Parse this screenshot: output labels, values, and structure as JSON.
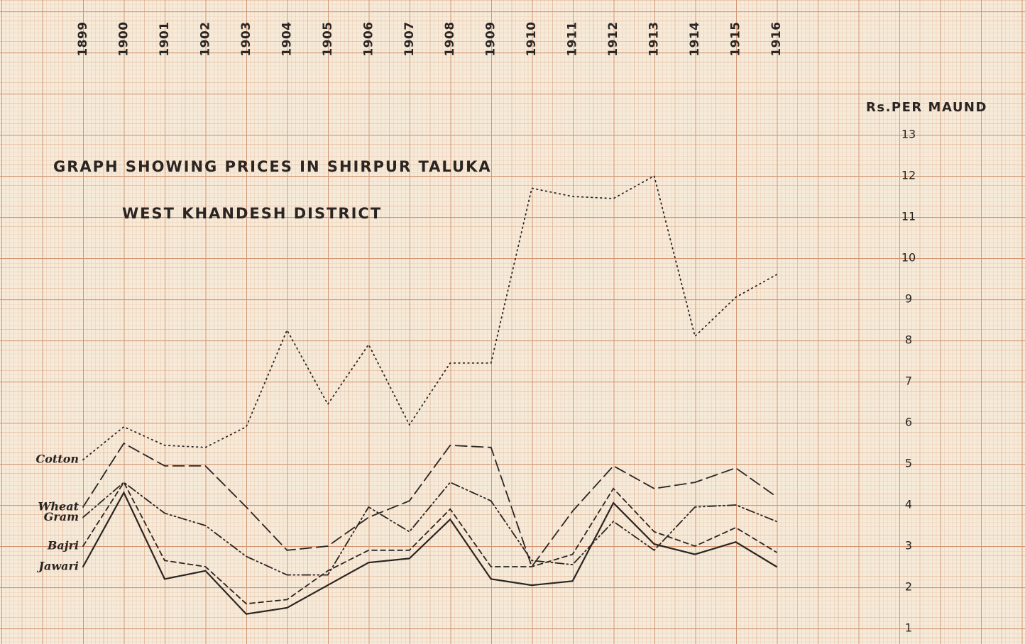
{
  "chart_data": {
    "type": "line",
    "title": "GRAPH SHOWING PRICES IN SHIRPUR TALUKA",
    "subtitle": "WEST KHANDESH DISTRICT",
    "y_label": "Rs.PER MAUND",
    "categories": [
      "1899",
      "1900",
      "1901",
      "1902",
      "1903",
      "1904",
      "1905",
      "1906",
      "1907",
      "1908",
      "1909",
      "1910",
      "1911",
      "1912",
      "1913",
      "1914",
      "1915",
      "1916"
    ],
    "series": [
      {
        "name": "Cotton",
        "color": "#2a2522",
        "style": "dotted",
        "values": [
          5.1,
          5.9,
          5.45,
          5.4,
          5.9,
          8.25,
          6.45,
          7.9,
          5.95,
          7.45,
          7.45,
          11.7,
          11.5,
          11.45,
          12.0,
          8.1,
          9.05,
          9.6
        ]
      },
      {
        "name": "Wheat",
        "color": "#2a2522",
        "style": "dashed",
        "values": [
          3.95,
          5.5,
          4.95,
          4.95,
          3.95,
          2.9,
          3.0,
          3.7,
          4.1,
          5.45,
          5.4,
          2.5,
          3.85,
          4.95,
          4.4,
          4.55,
          4.9,
          4.2
        ]
      },
      {
        "name": "Gram",
        "color": "#2a2522",
        "style": "dash-dot-dot",
        "values": [
          3.7,
          4.55,
          3.8,
          3.5,
          2.75,
          2.3,
          2.3,
          3.95,
          3.35,
          4.55,
          4.1,
          2.65,
          2.55,
          3.6,
          2.9,
          3.95,
          4.0,
          3.6
        ]
      },
      {
        "name": "Bajri",
        "color": "#2a2522",
        "style": "short-dash",
        "values": [
          3.0,
          4.55,
          2.65,
          2.5,
          1.6,
          1.7,
          2.4,
          2.9,
          2.9,
          3.9,
          2.5,
          2.5,
          2.8,
          4.4,
          3.35,
          3.0,
          3.45,
          2.85
        ]
      },
      {
        "name": "Jawari",
        "color": "#2a2522",
        "style": "solid",
        "values": [
          2.5,
          4.3,
          2.2,
          2.4,
          1.35,
          1.5,
          2.05,
          2.6,
          2.7,
          3.65,
          2.2,
          2.05,
          2.15,
          4.05,
          3.05,
          2.8,
          3.1,
          2.5
        ]
      }
    ],
    "ylim": [
      1,
      13
    ],
    "yticks": [
      1,
      2,
      3,
      4,
      5,
      6,
      7,
      8,
      9,
      10,
      11,
      12,
      13
    ]
  }
}
